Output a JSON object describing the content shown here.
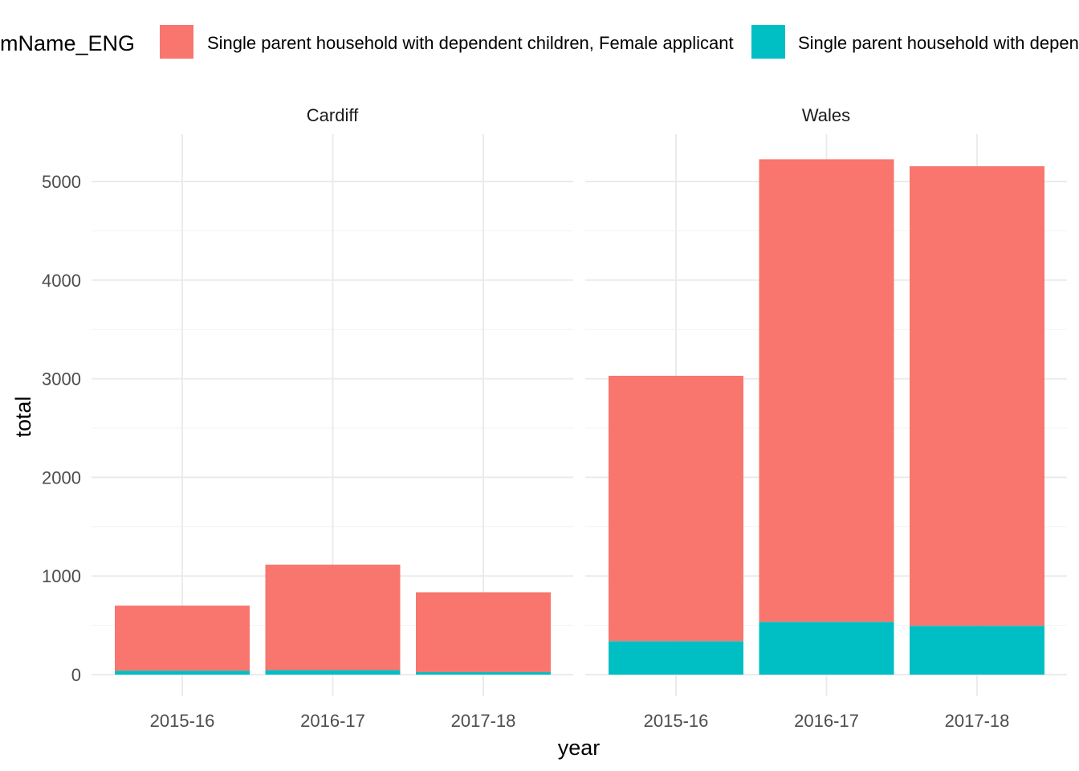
{
  "chart_data": {
    "type": "bar",
    "stacked": true,
    "facets": [
      "Cardiff",
      "Wales"
    ],
    "categories": [
      "2015-16",
      "2016-17",
      "2017-18"
    ],
    "xlabel": "year",
    "ylabel": "total",
    "ylim": [
      0,
      5450
    ],
    "yticks": [
      0,
      1000,
      2000,
      3000,
      4000,
      5000
    ],
    "legend_title": "mName_ENG",
    "legend_position": "top",
    "grid": true,
    "series": [
      {
        "name": "Single parent household with dependent children, Female applicant",
        "color": "#F8766D",
        "values": {
          "Cardiff": [
            660,
            1070,
            810
          ],
          "Wales": [
            2690,
            4690,
            4660
          ]
        }
      },
      {
        "name": "Single parent household with dependent children, Male applicant",
        "color": "#00BFC4",
        "values": {
          "Cardiff": [
            40,
            45,
            25
          ],
          "Wales": [
            340,
            535,
            495
          ]
        }
      }
    ]
  }
}
